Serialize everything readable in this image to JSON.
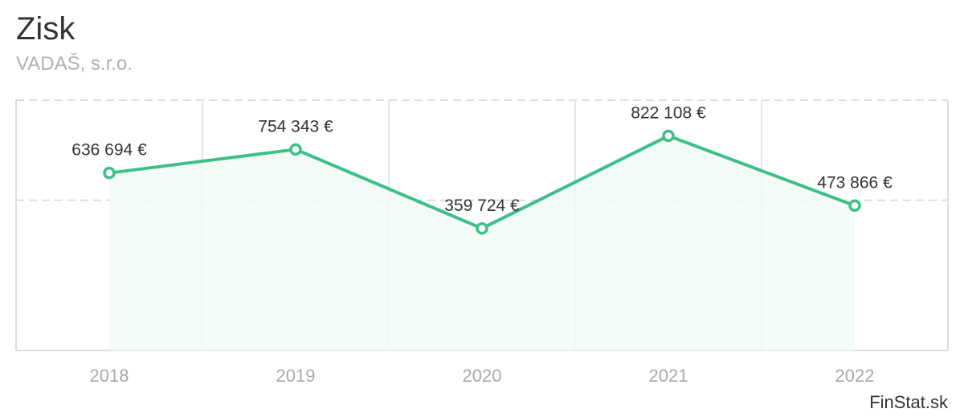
{
  "header": {
    "title": "Zisk",
    "subtitle": "VADAŠ, s.r.o."
  },
  "footer": {
    "brand": "FinStat.sk"
  },
  "chart_data": {
    "type": "line",
    "title": "Zisk",
    "subtitle": "VADAŠ, s.r.o.",
    "categories": [
      "2018",
      "2019",
      "2020",
      "2021",
      "2022"
    ],
    "series": [
      {
        "values": [
          636694,
          754343,
          359724,
          822108,
          473866
        ],
        "labels": [
          "636 694 €",
          "754 343 €",
          "359 724 €",
          "822 108 €",
          "473 866 €"
        ]
      }
    ],
    "ylim": [
      -250000,
      1000000
    ],
    "grid": true,
    "legend": "none",
    "colors": {
      "line": "#3dbf86",
      "fill": "#f0faf5",
      "grid_horizontal": "#dddddd",
      "grid_vertical": "#dde9e4",
      "axis": "#dddddd"
    }
  }
}
